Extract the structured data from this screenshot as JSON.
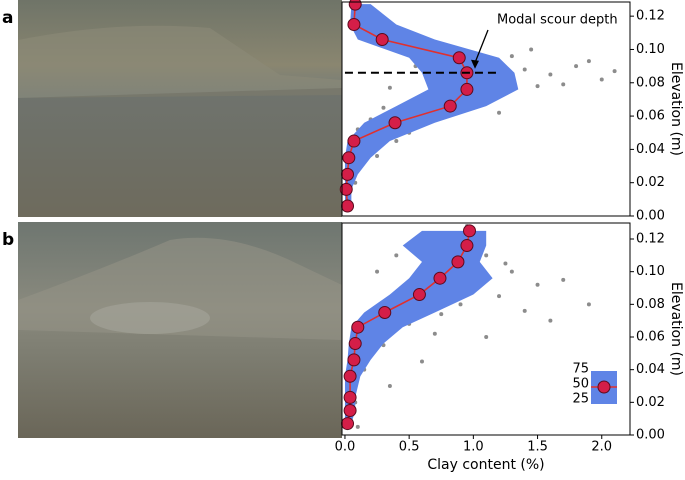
{
  "chart_data": [
    {
      "type": "scatter",
      "label": "a",
      "ylabel": "Elevation (m)",
      "annotation": "Modal scour depth",
      "modal_depth": 0.086,
      "xlim": [
        -0.023,
        2.22
      ],
      "ylim": [
        0,
        0.1285
      ],
      "yticks": [
        {
          "value": 0,
          "label": "0.00"
        },
        {
          "value": 0.02,
          "label": "0.02"
        },
        {
          "value": 0.04,
          "label": "0.04"
        },
        {
          "value": 0.06,
          "label": "0.06"
        },
        {
          "value": 0.08,
          "label": "0.08"
        },
        {
          "value": 0.1,
          "label": "0.10"
        },
        {
          "value": 0.12,
          "label": "0.12"
        }
      ],
      "points": {
        "color": "#8c8c8c",
        "x": [
          0.95,
          1.1,
          1.4,
          1.6,
          1.8,
          2.0,
          1.5,
          1.25,
          0.8,
          0.6,
          1.05,
          0.3,
          0.7,
          0.2,
          0.5,
          0.1,
          0.05,
          0.15,
          0.02,
          0.08,
          0.03,
          0.3,
          0.5,
          0.7,
          0.2,
          1.3,
          1.7,
          1.9,
          2.1,
          0.9,
          0.4,
          0.25,
          1.2,
          0.55,
          1.45,
          0.35
        ],
        "y": [
          0.098,
          0.092,
          0.088,
          0.085,
          0.09,
          0.082,
          0.078,
          0.08,
          0.082,
          0.072,
          0.07,
          0.065,
          0.06,
          0.058,
          0.05,
          0.052,
          0.04,
          0.043,
          0.03,
          0.02,
          0.012,
          0.113,
          0.104,
          0.1,
          0.12,
          0.096,
          0.079,
          0.093,
          0.087,
          0.074,
          0.045,
          0.036,
          0.062,
          0.09,
          0.1,
          0.077
        ]
      },
      "band": {
        "color": "#5f84e6",
        "y": [
          0.1272,
          0.115,
          0.106,
          0.095,
          0.086,
          0.076,
          0.066,
          0.056,
          0.045,
          0.035,
          0.025,
          0.016,
          0.006
        ],
        "lower": [
          0.05,
          0.04,
          0.1,
          0.5,
          0.6,
          0.65,
          0.4,
          0.15,
          0.02,
          0.0,
          0.0,
          0.0,
          0.0
        ],
        "upper": [
          0.2,
          0.4,
          0.7,
          1.2,
          1.32,
          1.35,
          1.1,
          0.7,
          0.35,
          0.2,
          0.1,
          0.05,
          0.05
        ]
      },
      "median": {
        "color": "#e0302f",
        "marker_color": "#d41e48",
        "x": [
          0.08,
          0.07,
          0.29,
          0.89,
          0.95,
          0.95,
          0.82,
          0.39,
          0.07,
          0.03,
          0.02,
          0.01,
          0.02
        ],
        "y": [
          0.1272,
          0.115,
          0.106,
          0.095,
          0.086,
          0.076,
          0.066,
          0.056,
          0.045,
          0.035,
          0.025,
          0.016,
          0.006
        ]
      }
    },
    {
      "type": "scatter",
      "label": "b",
      "ylabel": "Elevation (m)",
      "xlabel": "Clay content (%)",
      "xlim": [
        -0.023,
        2.22
      ],
      "ylim": [
        0,
        0.1298
      ],
      "xticks": [
        {
          "value": 0,
          "label": "0.0"
        },
        {
          "value": 0.5,
          "label": "0.5"
        },
        {
          "value": 1,
          "label": "1.0"
        },
        {
          "value": 1.5,
          "label": "1.5"
        },
        {
          "value": 2,
          "label": "2.0"
        }
      ],
      "yticks": [
        {
          "value": 0,
          "label": "0.00"
        },
        {
          "value": 0.02,
          "label": "0.02"
        },
        {
          "value": 0.04,
          "label": "0.04"
        },
        {
          "value": 0.06,
          "label": "0.06"
        },
        {
          "value": 0.08,
          "label": "0.08"
        },
        {
          "value": 0.1,
          "label": "0.10"
        },
        {
          "value": 0.12,
          "label": "0.12"
        }
      ],
      "legend_labels": [
        "75",
        "50",
        "25"
      ],
      "points": {
        "color": "#8c8c8c",
        "x": [
          1.0,
          1.1,
          0.8,
          1.3,
          1.5,
          1.2,
          0.6,
          0.9,
          1.4,
          0.4,
          0.2,
          0.5,
          0.7,
          0.1,
          0.3,
          0.05,
          0.15,
          0.02,
          0.08,
          0.03,
          1.7,
          1.9,
          1.6,
          0.25,
          0.4,
          0.95,
          1.25,
          0.75,
          0.2,
          1.1,
          0.6,
          0.35,
          0.1
        ],
        "y": [
          0.12,
          0.11,
          0.118,
          0.1,
          0.092,
          0.085,
          0.09,
          0.08,
          0.076,
          0.082,
          0.07,
          0.068,
          0.062,
          0.06,
          0.055,
          0.048,
          0.04,
          0.032,
          0.02,
          0.01,
          0.095,
          0.08,
          0.07,
          0.1,
          0.11,
          0.128,
          0.105,
          0.074,
          0.05,
          0.06,
          0.045,
          0.03,
          0.005
        ]
      },
      "band": {
        "color": "#5f84e6",
        "y": [
          0.125,
          0.116,
          0.106,
          0.096,
          0.086,
          0.075,
          0.066,
          0.056,
          0.046,
          0.036,
          0.023,
          0.015,
          0.007
        ],
        "lower": [
          0.6,
          0.45,
          0.6,
          0.5,
          0.35,
          0.15,
          0.05,
          0.03,
          0.02,
          0.0,
          0.0,
          0.0,
          0.0
        ],
        "upper": [
          1.1,
          1.1,
          1.05,
          1.15,
          1.0,
          0.7,
          0.45,
          0.3,
          0.2,
          0.12,
          0.08,
          0.08,
          0.05
        ]
      },
      "median": {
        "color": "#e0302f",
        "marker_color": "#d41e48",
        "x": [
          0.97,
          0.95,
          0.88,
          0.74,
          0.58,
          0.31,
          0.1,
          0.08,
          0.07,
          0.04,
          0.04,
          0.04,
          0.02
        ],
        "y": [
          0.125,
          0.116,
          0.106,
          0.096,
          0.086,
          0.075,
          0.066,
          0.056,
          0.046,
          0.036,
          0.023,
          0.015,
          0.007
        ]
      }
    }
  ]
}
